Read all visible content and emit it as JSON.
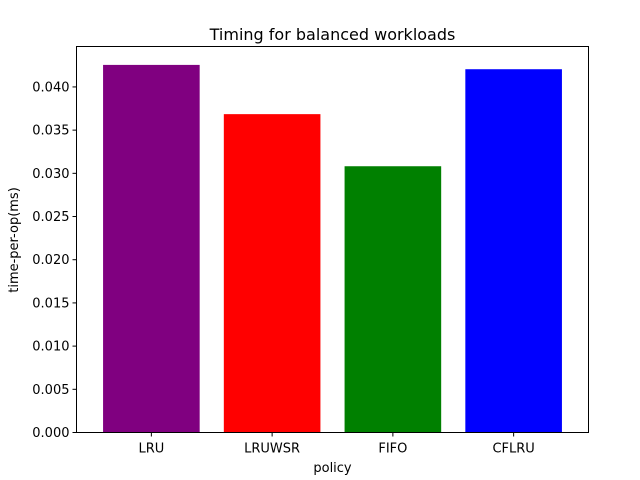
{
  "chart_data": {
    "type": "bar",
    "title": "Timing for balanced workloads",
    "xlabel": "policy",
    "ylabel": "time-per-op(ms)",
    "categories": [
      "LRU",
      "LRUWSR",
      "FIFO",
      "CFLRU"
    ],
    "values": [
      0.04255,
      0.03685,
      0.03082,
      0.04205
    ],
    "colors": [
      "#800080",
      "#ff0000",
      "#008000",
      "#0000ff"
    ],
    "ylim": [
      0,
      0.04468
    ],
    "yticks": [
      0.0,
      0.005,
      0.01,
      0.015,
      0.02,
      0.025,
      0.03,
      0.035,
      0.04
    ],
    "ytick_labels": [
      "0.000",
      "0.005",
      "0.010",
      "0.015",
      "0.020",
      "0.025",
      "0.030",
      "0.035",
      "0.040"
    ],
    "grid": false,
    "legend": "none"
  }
}
